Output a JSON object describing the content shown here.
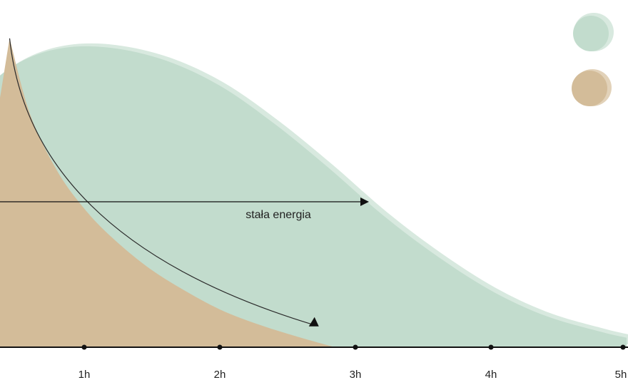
{
  "chart_data": {
    "type": "area",
    "x_unit": "h",
    "xlim": [
      -0.6,
      5.05
    ],
    "ylim": [
      0,
      1
    ],
    "grid": false,
    "legend": "top-right",
    "tick_labels": [
      "1h",
      "2h",
      "3h",
      "4h",
      "5h"
    ],
    "tick_values": [
      1,
      2,
      3,
      4,
      5
    ],
    "annotation": "stała energia",
    "annotation_span": [
      -0.3,
      3.1
    ],
    "decline_arrow": {
      "from": [
        0.45,
        0.98
      ],
      "to": [
        2.7,
        0.07
      ]
    },
    "colors": {
      "green": "#c2dccd",
      "green_light": "#d8e9df",
      "tan": "#d3bc99",
      "axis": "#111111"
    },
    "series": [
      {
        "color": "#c2dccd",
        "x": [
          -0.6,
          -0.35,
          -0.1,
          0.1,
          0.3,
          0.55,
          0.85,
          1.2,
          1.6,
          2.0,
          2.4,
          2.8,
          3.2,
          3.6,
          4.0,
          4.4,
          4.8,
          5.0
        ],
        "y": [
          0.04,
          0.22,
          0.5,
          0.7,
          0.83,
          0.91,
          0.95,
          0.95,
          0.91,
          0.83,
          0.71,
          0.57,
          0.42,
          0.29,
          0.18,
          0.1,
          0.05,
          0.03
        ]
      },
      {
        "color": "#d3bc99",
        "x": [
          -0.6,
          -0.35,
          -0.1,
          0.1,
          0.3,
          0.45,
          0.6,
          0.8,
          1.0,
          1.2,
          1.45,
          1.7,
          2.0,
          2.3,
          2.6,
          2.85
        ],
        "y": [
          0.04,
          0.12,
          0.24,
          0.4,
          0.62,
          0.98,
          0.74,
          0.56,
          0.44,
          0.35,
          0.26,
          0.19,
          0.12,
          0.07,
          0.03,
          0.0
        ]
      }
    ]
  }
}
